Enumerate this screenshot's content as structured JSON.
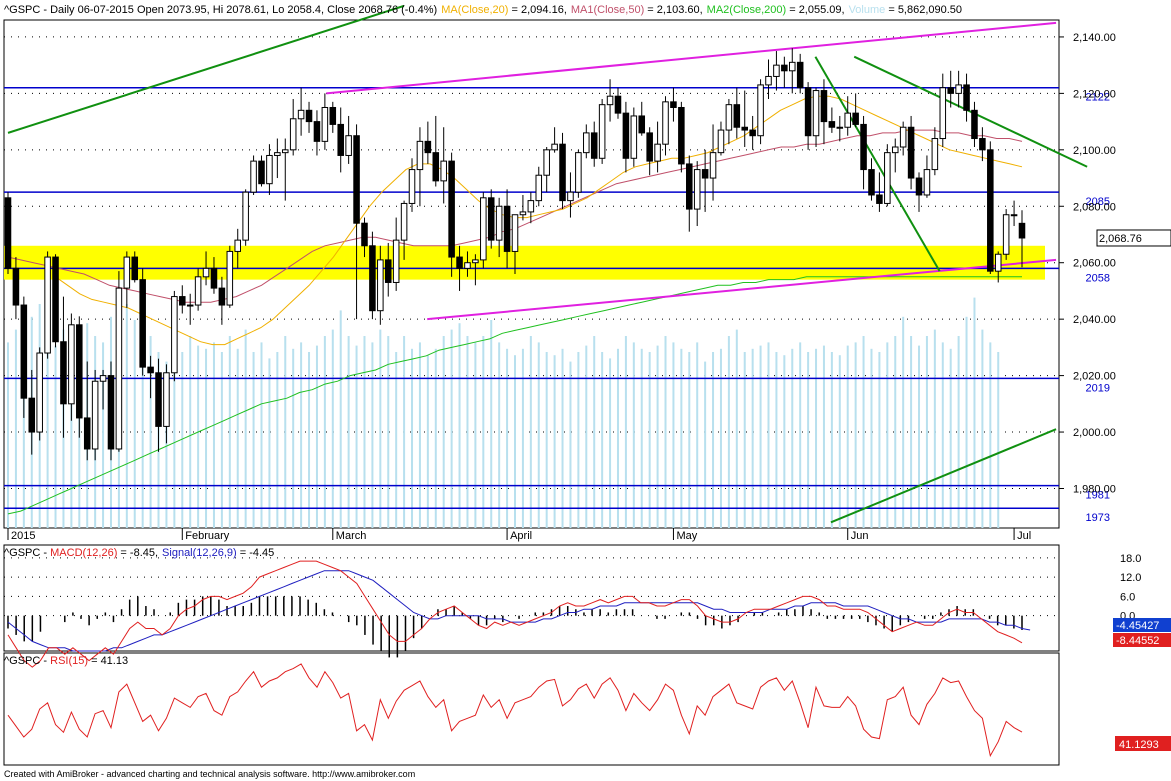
{
  "header": {
    "symbol": "^GSPC",
    "info": "^GSPC - Daily 06-07-2015 Open 2073.95, Hi 2078.61, Lo 2058.4, Close 2068.76 (-0.4%)",
    "ma20_label": "MA(Close,20)",
    "ma20_value": " = 2,094.16,",
    "ma50_label": "MA1(Close,50)",
    "ma50_value": " = 2,103.60,",
    "ma200_label": "MA2(Close,200)",
    "ma200_value": " = 2,055.09,",
    "volume_label": "Volume",
    "volume_value": " = 5,862,090.50"
  },
  "macd_header": {
    "prefix": "^GSPC - ",
    "macd_label": "MACD(12,26)",
    "macd_value": " = -8.45,",
    "signal_label": "Signal(12,26,9)",
    "signal_value": " = -4.45"
  },
  "rsi_header": {
    "prefix": "^GSPC - ",
    "rsi_label": "RSI(15)",
    "rsi_value": " = 41.13"
  },
  "footer": "Created with AmiBroker - advanced charting and technical analysis software. http://www.amibroker.com",
  "price_axis": [
    "2,140.00",
    "2,120.00",
    "2,100.00",
    "2,080.00",
    "2,060.00",
    "2,040.00",
    "2,020.00",
    "2,000.00",
    "1,980.00"
  ],
  "macd_axis": [
    "18.0",
    "12.0",
    "6.0",
    "0.0"
  ],
  "months": [
    "2015",
    "February",
    "March",
    "April",
    "May",
    "Jun",
    "Jul"
  ],
  "hlines": [
    {
      "label": "2122",
      "value": 2122
    },
    {
      "label": "2085",
      "value": 2085
    },
    {
      "label": "2058",
      "value": 2058
    },
    {
      "label": "2019",
      "value": 2019
    },
    {
      "label": "1981",
      "value": 1981
    },
    {
      "label": "1973",
      "value": 1973
    }
  ],
  "current_price_label": "2,068.76",
  "macd_current_label": "-4.45427",
  "macd_current_label2": "-8.44552",
  "rsi_current_label": "41.1293",
  "colors": {
    "up": "#ffffff",
    "down": "#000000",
    "ma20": "#f0b000",
    "ma50": "#c0506a",
    "ma200": "#20c020",
    "volume": "#b8e0ee",
    "hline": "#0000cc",
    "trend_green": "#109010",
    "trend_magenta": "#e020e0",
    "zone": "#ffff00",
    "macd": "#e02020",
    "signal": "#2020c0"
  },
  "chart_data": {
    "type": "candlestick",
    "title": "^GSPC - Daily 06-07-2015",
    "xlabel": "",
    "ylabel": "",
    "ylim": [
      1966,
      2146
    ],
    "last_bar": {
      "date": "06-07-2015",
      "open": 2073.95,
      "high": 2078.61,
      "low": 2058.4,
      "close": 2068.76
    },
    "candles": [
      [
        2083,
        2085,
        2056,
        2058
      ],
      [
        2058,
        2062,
        2040,
        2045
      ],
      [
        2045,
        2048,
        2005,
        2012
      ],
      [
        2012,
        2022,
        1992,
        2000
      ],
      [
        2000,
        2030,
        1997,
        2028
      ],
      [
        2028,
        2064,
        2026,
        2062
      ],
      [
        2062,
        2063,
        2030,
        2032
      ],
      [
        2032,
        2048,
        1998,
        2010
      ],
      [
        2010,
        2042,
        2004,
        2038
      ],
      [
        2038,
        2041,
        1998,
        2005
      ],
      [
        2005,
        2025,
        1990,
        1994
      ],
      [
        1994,
        2022,
        1990,
        2018
      ],
      [
        2018,
        2022,
        2008,
        2020
      ],
      [
        2020,
        2025,
        1990,
        1994
      ],
      [
        1994,
        2057,
        1993,
        2051
      ],
      [
        2051,
        2064,
        2044,
        2062
      ],
      [
        2062,
        2064,
        2053,
        2054
      ],
      [
        2054,
        2058,
        2020,
        2023
      ],
      [
        2023,
        2027,
        2012,
        2021
      ],
      [
        2021,
        2026,
        1993,
        2002
      ],
      [
        2002,
        2024,
        1996,
        2021
      ],
      [
        2021,
        2050,
        2018,
        2048
      ],
      [
        2048,
        2052,
        2042,
        2045
      ],
      [
        2045,
        2049,
        2038,
        2045
      ],
      [
        2045,
        2058,
        2043,
        2055
      ],
      [
        2055,
        2064,
        2052,
        2058
      ],
      [
        2058,
        2062,
        2049,
        2051
      ],
      [
        2051,
        2055,
        2038,
        2045
      ],
      [
        2045,
        2066,
        2044,
        2064
      ],
      [
        2064,
        2072,
        2058,
        2068
      ],
      [
        2068,
        2086,
        2066,
        2085
      ],
      [
        2085,
        2098,
        2084,
        2096
      ],
      [
        2096,
        2098,
        2087,
        2088
      ],
      [
        2088,
        2102,
        2084,
        2098
      ],
      [
        2098,
        2104,
        2090,
        2099
      ],
      [
        2099,
        2104,
        2082,
        2100
      ],
      [
        2100,
        2118,
        2098,
        2111
      ],
      [
        2111,
        2122,
        2105,
        2114
      ],
      [
        2114,
        2117,
        2106,
        2110
      ],
      [
        2110,
        2114,
        2098,
        2103
      ],
      [
        2103,
        2120,
        2100,
        2115
      ],
      [
        2115,
        2117,
        2106,
        2109
      ],
      [
        2109,
        2115,
        2092,
        2098
      ],
      [
        2098,
        2112,
        2095,
        2105
      ],
      [
        2105,
        2109,
        2040,
        2074
      ],
      [
        2074,
        2076,
        2062,
        2066
      ],
      [
        2066,
        2071,
        2040,
        2043
      ],
      [
        2043,
        2066,
        2038,
        2061
      ],
      [
        2061,
        2067,
        2048,
        2053
      ],
      [
        2053,
        2076,
        2050,
        2068
      ],
      [
        2068,
        2082,
        2061,
        2081
      ],
      [
        2081,
        2097,
        2078,
        2093
      ],
      [
        2093,
        2108,
        2080,
        2103
      ],
      [
        2103,
        2110,
        2095,
        2099
      ],
      [
        2099,
        2112,
        2087,
        2089
      ],
      [
        2089,
        2108,
        2081,
        2096
      ],
      [
        2096,
        2099,
        2055,
        2062
      ],
      [
        2062,
        2066,
        2050,
        2058
      ],
      [
        2058,
        2064,
        2055,
        2060
      ],
      [
        2060,
        2063,
        2052,
        2061
      ],
      [
        2061,
        2085,
        2058,
        2083
      ],
      [
        2083,
        2086,
        2065,
        2068
      ],
      [
        2068,
        2083,
        2062,
        2080
      ],
      [
        2080,
        2086,
        2058,
        2064
      ],
      [
        2064,
        2077,
        2056,
        2077
      ],
      [
        2077,
        2084,
        2075,
        2078
      ],
      [
        2078,
        2085,
        2074,
        2082
      ],
      [
        2082,
        2094,
        2080,
        2091
      ],
      [
        2091,
        2101,
        2085,
        2100
      ],
      [
        2100,
        2108,
        2099,
        2102
      ],
      [
        2102,
        2106,
        2079,
        2082
      ],
      [
        2082,
        2092,
        2076,
        2085
      ],
      [
        2085,
        2100,
        2083,
        2099
      ],
      [
        2099,
        2109,
        2097,
        2106
      ],
      [
        2106,
        2110,
        2094,
        2097
      ],
      [
        2097,
        2118,
        2095,
        2116
      ],
      [
        2116,
        2125,
        2110,
        2119
      ],
      [
        2119,
        2122,
        2111,
        2113
      ],
      [
        2113,
        2117,
        2092,
        2097
      ],
      [
        2097,
        2115,
        2094,
        2112
      ],
      [
        2112,
        2117,
        2105,
        2106
      ],
      [
        2106,
        2108,
        2091,
        2096
      ],
      [
        2096,
        2110,
        2092,
        2102
      ],
      [
        2102,
        2119,
        2098,
        2117
      ],
      [
        2117,
        2122,
        2110,
        2115
      ],
      [
        2115,
        2117,
        2092,
        2095
      ],
      [
        2095,
        2098,
        2071,
        2079
      ],
      [
        2079,
        2096,
        2073,
        2093
      ],
      [
        2093,
        2100,
        2078,
        2090
      ],
      [
        2090,
        2109,
        2082,
        2099
      ],
      [
        2099,
        2110,
        2098,
        2107
      ],
      [
        2107,
        2118,
        2102,
        2116
      ],
      [
        2116,
        2122,
        2104,
        2108
      ],
      [
        2108,
        2121,
        2101,
        2107
      ],
      [
        2107,
        2112,
        2100,
        2105
      ],
      [
        2105,
        2125,
        2102,
        2123
      ],
      [
        2123,
        2132,
        2118,
        2126
      ],
      [
        2126,
        2135,
        2121,
        2130
      ],
      [
        2130,
        2133,
        2122,
        2128
      ],
      [
        2128,
        2136,
        2120,
        2131
      ],
      [
        2131,
        2134,
        2120,
        2122
      ],
      [
        2122,
        2124,
        2100,
        2105
      ],
      [
        2105,
        2122,
        2101,
        2121
      ],
      [
        2121,
        2125,
        2102,
        2110
      ],
      [
        2110,
        2115,
        2106,
        2108
      ],
      [
        2108,
        2112,
        2103,
        2108
      ],
      [
        2108,
        2119,
        2105,
        2113
      ],
      [
        2113,
        2120,
        2108,
        2109
      ],
      [
        2109,
        2112,
        2086,
        2093
      ],
      [
        2093,
        2097,
        2082,
        2084
      ],
      [
        2084,
        2092,
        2078,
        2081
      ],
      [
        2081,
        2102,
        2080,
        2099
      ],
      [
        2099,
        2104,
        2092,
        2101
      ],
      [
        2101,
        2110,
        2098,
        2108
      ],
      [
        2108,
        2112,
        2086,
        2090
      ],
      [
        2090,
        2092,
        2078,
        2084
      ],
      [
        2084,
        2098,
        2083,
        2093
      ],
      [
        2093,
        2108,
        2091,
        2104
      ],
      [
        2104,
        2127,
        2101,
        2122
      ],
      [
        2122,
        2128,
        2115,
        2120
      ],
      [
        2120,
        2128,
        2115,
        2123
      ],
      [
        2123,
        2127,
        2110,
        2114
      ],
      [
        2114,
        2117,
        2101,
        2104
      ],
      [
        2104,
        2108,
        2096,
        2100
      ],
      [
        2100,
        2103,
        2056,
        2057
      ],
      [
        2057,
        2064,
        2053,
        2063
      ],
      [
        2063,
        2079,
        2061,
        2077
      ],
      [
        2077,
        2082,
        2073,
        2077
      ],
      [
        2073.95,
        2078.61,
        2058.4,
        2068.76
      ]
    ],
    "ma20": [
      2055,
      2052,
      2049,
      2047,
      2046,
      2045,
      2044,
      2042,
      2040,
      2038,
      2036,
      2034,
      2032,
      2031,
      2031,
      2033,
      2035,
      2037,
      2040,
      2044,
      2048,
      2052,
      2057,
      2062,
      2068,
      2074,
      2080,
      2085,
      2089,
      2093,
      2095,
      2095,
      2093,
      2090,
      2086,
      2082,
      2079,
      2077,
      2076,
      2076,
      2077,
      2078,
      2079,
      2081,
      2083,
      2086,
      2089,
      2092,
      2094,
      2095,
      2096,
      2097,
      2097,
      2098,
      2099,
      2101,
      2103,
      2105,
      2108,
      2111,
      2114,
      2116,
      2118,
      2119,
      2119,
      2118,
      2116,
      2114,
      2112,
      2110,
      2108,
      2106,
      2104,
      2102,
      2100,
      2099,
      2098,
      2097,
      2096,
      2095,
      2094
    ],
    "ma50": [
      2062,
      2061,
      2060,
      2059,
      2058,
      2057,
      2056,
      2054,
      2052,
      2051,
      2050,
      2049,
      2048,
      2047,
      2046,
      2046,
      2046,
      2047,
      2048,
      2050,
      2052,
      2055,
      2058,
      2061,
      2064,
      2066,
      2067,
      2068,
      2069,
      2069,
      2068,
      2067,
      2066,
      2066,
      2066,
      2066,
      2067,
      2068,
      2069,
      2071,
      2072,
      2074,
      2076,
      2078,
      2080,
      2082,
      2084,
      2086,
      2088,
      2089,
      2090,
      2091,
      2092,
      2093,
      2094,
      2095,
      2096,
      2097,
      2098,
      2099,
      2100,
      2101,
      2101,
      2102,
      2102,
      2103,
      2104,
      2105,
      2105,
      2106,
      2106,
      2107,
      2107,
      2107,
      2106,
      2106,
      2105,
      2105,
      2104,
      2104,
      2103
    ],
    "ma200": [
      1971,
      1972,
      1974,
      1976,
      1978,
      1980,
      1982,
      1984,
      1986,
      1988,
      1990,
      1992,
      1994,
      1996,
      1998,
      2000,
      2002,
      2004,
      2006,
      2008,
      2010,
      2011,
      2012,
      2014,
      2015,
      2017,
      2018,
      2020,
      2021,
      2022,
      2024,
      2025,
      2026,
      2027,
      2029,
      2030,
      2031,
      2032,
      2033,
      2035,
      2036,
      2037,
      2038,
      2039,
      2040,
      2041,
      2042,
      2043,
      2044,
      2045,
      2046,
      2047,
      2048,
      2049,
      2050,
      2051,
      2052,
      2052,
      2053,
      2053,
      2054,
      2054,
      2054,
      2055,
      2055,
      2055,
      2055,
      2055,
      2055,
      2055,
      2055,
      2055,
      2055,
      2055,
      2055,
      2055,
      2055,
      2055,
      2055,
      2055,
      2055
    ],
    "volume": [
      0.58,
      0.62,
      0.55,
      0.66,
      0.7,
      0.6,
      0.57,
      0.62,
      0.61,
      0.58,
      0.64,
      0.6,
      0.58,
      0.66,
      0.62,
      0.7,
      0.65,
      0.63,
      0.6,
      0.55,
      0.52,
      0.58,
      0.55,
      0.6,
      0.57,
      0.56,
      0.58,
      0.55,
      0.6,
      0.56,
      0.62,
      0.55,
      0.58,
      0.53,
      0.55,
      0.6,
      0.56,
      0.58,
      0.55,
      0.57,
      0.6,
      0.62,
      0.68,
      0.6,
      0.57,
      0.6,
      0.58,
      0.62,
      0.6,
      0.55,
      0.6,
      0.56,
      0.58,
      0.54,
      0.56,
      0.6,
      0.62,
      0.64,
      0.6,
      0.58,
      0.6,
      0.65,
      0.58,
      0.56,
      0.54,
      0.56,
      0.6,
      0.58,
      0.55,
      0.54,
      0.56,
      0.52,
      0.55,
      0.57,
      0.6,
      0.55,
      0.53,
      0.56,
      0.6,
      0.58,
      0.56,
      0.55,
      0.57,
      0.6,
      0.58,
      0.56,
      0.55,
      0.58,
      0.52,
      0.55,
      0.56,
      0.6,
      0.62,
      0.55,
      0.56,
      0.57,
      0.58,
      0.55,
      0.54,
      0.56,
      0.58,
      0.55,
      0.56,
      0.57,
      0.55,
      0.54,
      0.57,
      0.58,
      0.6,
      0.56,
      0.55,
      0.58,
      0.6,
      0.66,
      0.6,
      0.57,
      0.6,
      0.62,
      0.58,
      0.56,
      0.6,
      0.66,
      0.72,
      0.62,
      0.58,
      0.55
    ],
    "macd": [
      -6,
      -10,
      -14,
      -16,
      -14,
      -10,
      -10,
      -12,
      -10,
      -12,
      -14,
      -12,
      -10,
      -12,
      -8,
      -4,
      -2,
      -4,
      -4,
      -6,
      -4,
      0,
      2,
      3,
      5,
      6,
      6,
      5,
      6,
      7,
      9,
      12,
      13,
      14,
      15,
      16,
      17,
      17,
      17,
      16,
      15,
      14,
      12,
      10,
      6,
      2,
      -2,
      -6,
      -8,
      -8,
      -6,
      -4,
      -1,
      1,
      2,
      3,
      1,
      -1,
      -3,
      -4,
      -2,
      -3,
      -2,
      -3,
      -2,
      -1,
      0,
      1,
      3,
      4,
      3,
      3,
      4,
      5,
      4,
      5,
      6,
      6,
      4,
      4,
      3,
      3,
      4,
      5,
      5,
      3,
      0,
      -1,
      -2,
      -2,
      -1,
      1,
      2,
      2,
      2,
      3,
      4,
      5,
      6,
      6,
      5,
      3,
      3,
      2,
      2,
      2,
      1,
      -1,
      -3,
      -5,
      -4,
      -3,
      -2,
      -3,
      -3,
      -1,
      1,
      2,
      1,
      1,
      -1,
      -3,
      -5,
      -6,
      -7,
      -8.45
    ],
    "signal": [
      -2,
      -4,
      -6,
      -8,
      -9,
      -10,
      -10,
      -10,
      -11,
      -11,
      -11,
      -11,
      -11,
      -10,
      -10,
      -9,
      -8,
      -7,
      -6,
      -6,
      -5,
      -4,
      -3,
      -2,
      -1,
      0,
      1,
      2,
      3,
      4,
      5,
      6,
      7,
      8,
      9,
      10,
      11,
      12,
      13,
      14,
      14,
      14,
      14,
      13,
      12,
      11,
      9,
      7,
      5,
      3,
      1,
      0,
      -1,
      -1,
      0,
      0,
      0,
      0,
      0,
      -1,
      -1,
      -1,
      -2,
      -2,
      -2,
      -2,
      -1,
      -1,
      0,
      1,
      1,
      2,
      2,
      3,
      3,
      3,
      4,
      4,
      4,
      4,
      4,
      4,
      4,
      4,
      4,
      4,
      3,
      2,
      2,
      1,
      1,
      1,
      1,
      1,
      2,
      2,
      2,
      3,
      3,
      4,
      4,
      4,
      4,
      3,
      3,
      3,
      3,
      2,
      1,
      0,
      -1,
      -1,
      -2,
      -2,
      -2,
      -2,
      -1,
      -1,
      -1,
      -1,
      -1,
      -2,
      -2,
      -3,
      -3,
      -4,
      -4.45
    ],
    "rsi": [
      52,
      45,
      38,
      43,
      56,
      60,
      46,
      41,
      54,
      43,
      38,
      53,
      55,
      44,
      67,
      72,
      60,
      48,
      52,
      42,
      50,
      63,
      60,
      57,
      64,
      66,
      55,
      52,
      64,
      67,
      74,
      80,
      70,
      74,
      76,
      80,
      82,
      85,
      76,
      70,
      80,
      73,
      63,
      66,
      42,
      46,
      36,
      62,
      50,
      61,
      68,
      71,
      74,
      64,
      57,
      62,
      42,
      48,
      50,
      52,
      65,
      57,
      62,
      50,
      60,
      62,
      64,
      70,
      74,
      75,
      58,
      62,
      69,
      72,
      63,
      72,
      76,
      68,
      55,
      66,
      60,
      55,
      62,
      72,
      68,
      52,
      40,
      58,
      52,
      64,
      68,
      72,
      60,
      58,
      56,
      70,
      74,
      76,
      68,
      74,
      60,
      44,
      70,
      58,
      57,
      57,
      64,
      58,
      43,
      38,
      37,
      62,
      64,
      70,
      52,
      46,
      59,
      66,
      76,
      73,
      74,
      64,
      55,
      50,
      26,
      35,
      48,
      44,
      41.13
    ]
  }
}
